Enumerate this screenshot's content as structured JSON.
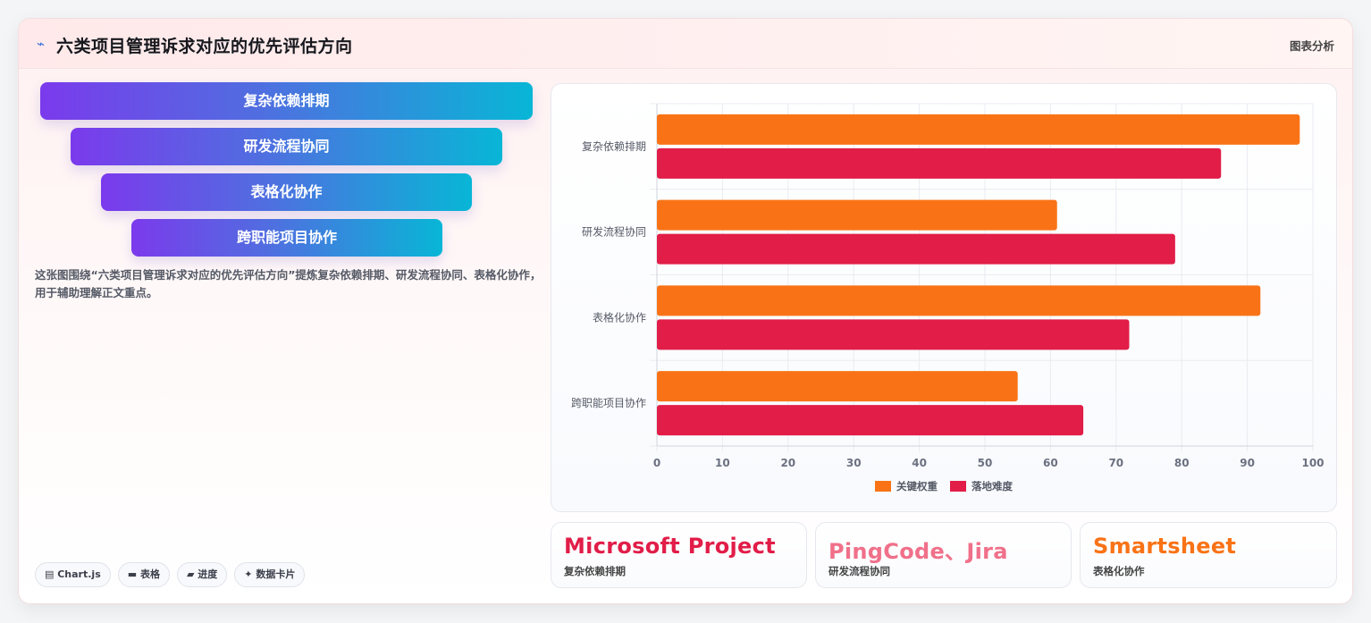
{
  "header": {
    "icon": "sparkline-icon",
    "title": "六类项目管理诉求对应的优先评估方向",
    "link": "图表分析"
  },
  "funnel": [
    {
      "label": "复杂依赖排期"
    },
    {
      "label": "研发流程协同"
    },
    {
      "label": "表格化协作"
    },
    {
      "label": "跨职能项目协作"
    }
  ],
  "description": "这张图围绕“六类项目管理诉求对应的优先评估方向”提炼复杂依赖排期、研发流程协同、表格化协作，用于辅助理解正文重点。",
  "tags": [
    {
      "icon": "chart-icon",
      "label": "Chart.js"
    },
    {
      "icon": "table-icon",
      "label": "表格"
    },
    {
      "icon": "progress-icon",
      "label": "进度"
    },
    {
      "icon": "sparkle-icon",
      "label": "数据卡片"
    }
  ],
  "stats": [
    {
      "value": "Microsoft Project",
      "label": "复杂依赖排期",
      "color": "#e11d48"
    },
    {
      "value": "PingCode、Jira",
      "label": "研发流程协同",
      "color": "#f0708a"
    },
    {
      "value": "Smartsheet",
      "label": "表格化协作",
      "color": "#f97316"
    }
  ],
  "chart_data": {
    "type": "bar",
    "orientation": "horizontal",
    "categories": [
      "复杂依赖排期",
      "研发流程协同",
      "表格化协作",
      "跨职能项目协作"
    ],
    "series": [
      {
        "name": "关键权重",
        "values": [
          98,
          61,
          92,
          55
        ],
        "color": "#f97316"
      },
      {
        "name": "落地难度",
        "values": [
          86,
          79,
          72,
          65
        ],
        "color": "#e11d48"
      }
    ],
    "xlim": [
      0,
      100
    ],
    "xticks": [
      0,
      10,
      20,
      30,
      40,
      50,
      60,
      70,
      80,
      90,
      100
    ],
    "grid": true,
    "legend": "bottom"
  }
}
